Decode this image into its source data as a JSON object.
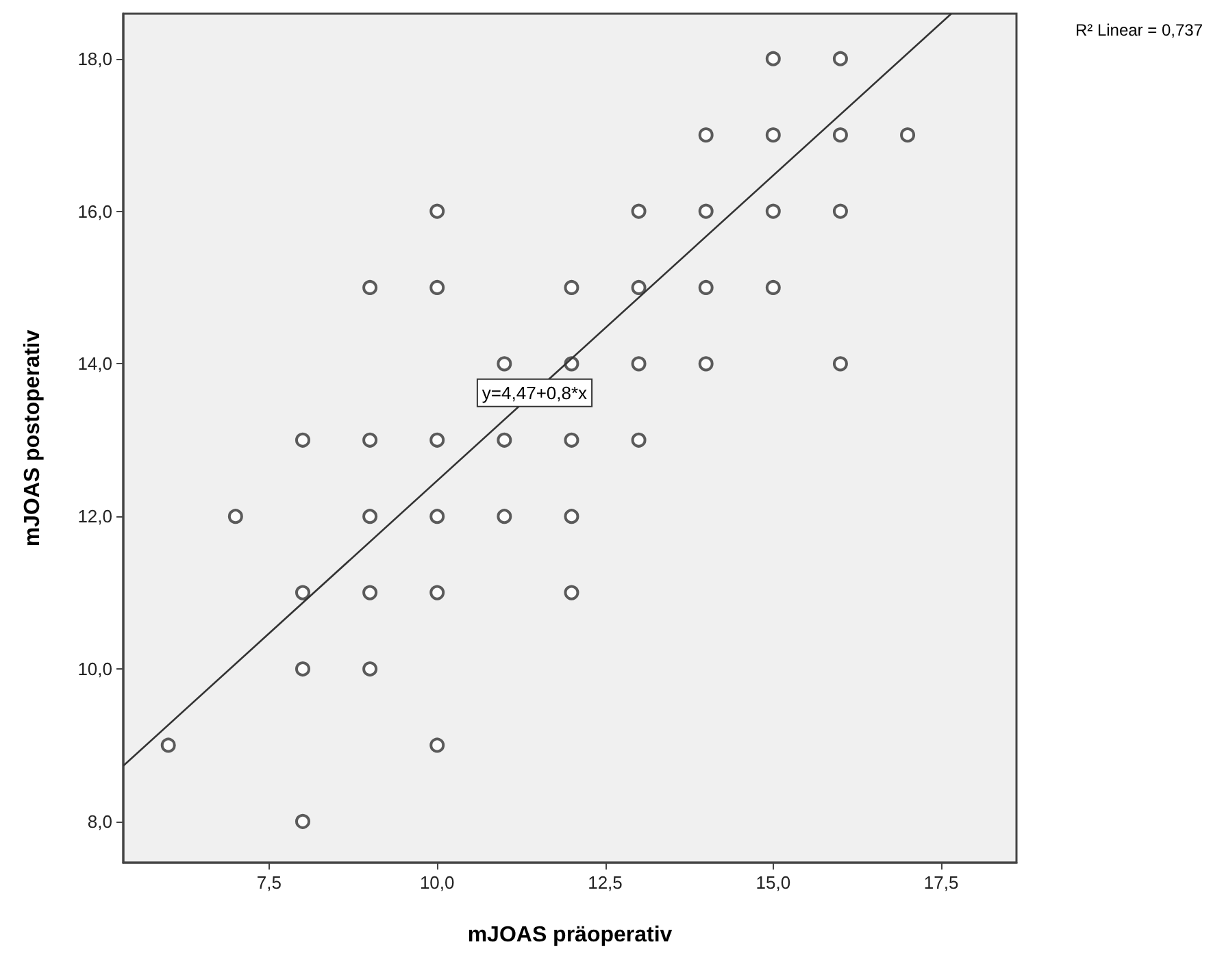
{
  "chart_data": {
    "type": "scatter",
    "xlabel": "mJOAS präoperativ",
    "ylabel": "mJOAS postoperativ",
    "xlim": [
      5.33,
      18.62
    ],
    "ylim": [
      7.46,
      18.59
    ],
    "xticks": [
      {
        "value": 7.5,
        "label": "7,5"
      },
      {
        "value": 10,
        "label": "10,0"
      },
      {
        "value": 12.5,
        "label": "12,5"
      },
      {
        "value": 15,
        "label": "15,0"
      },
      {
        "value": 17.5,
        "label": "17,5"
      }
    ],
    "yticks": [
      {
        "value": 8,
        "label": "8,0"
      },
      {
        "value": 10,
        "label": "10,0"
      },
      {
        "value": 12,
        "label": "12,0"
      },
      {
        "value": 14,
        "label": "14,0"
      },
      {
        "value": 16,
        "label": "16,0"
      },
      {
        "value": 18,
        "label": "18,0"
      }
    ],
    "grid": false,
    "marker": "circle",
    "series": [
      {
        "color": "#333333",
        "x": [
          15,
          16,
          14,
          15,
          16,
          17,
          10,
          13,
          14,
          15,
          16,
          9,
          10,
          12,
          13,
          14,
          15,
          11,
          12,
          13,
          14,
          16,
          8,
          9,
          10,
          11,
          12,
          13,
          7,
          9,
          10,
          11,
          12,
          8,
          9,
          10,
          12,
          8,
          9,
          6,
          10,
          8
        ],
        "values": [
          18,
          18,
          17,
          17,
          17,
          17,
          16,
          16,
          16,
          16,
          16,
          15,
          15,
          15,
          15,
          15,
          15,
          14,
          14,
          14,
          14,
          14,
          13,
          13,
          13,
          13,
          13,
          13,
          12,
          12,
          12,
          12,
          12,
          11,
          11,
          11,
          11,
          10,
          10,
          9,
          9,
          8
        ]
      },
      {
        "type": "line",
        "color": "#333333",
        "line_style": "solid",
        "marker": "none",
        "x": [
          5.33,
          17.65
        ],
        "values": [
          8.73,
          18.59
        ]
      }
    ],
    "annotations": [
      "R² Linear = 0,737",
      {
        "text": "y=4,47+0,8*x",
        "x": 11.45,
        "y": 13.62
      }
    ]
  }
}
